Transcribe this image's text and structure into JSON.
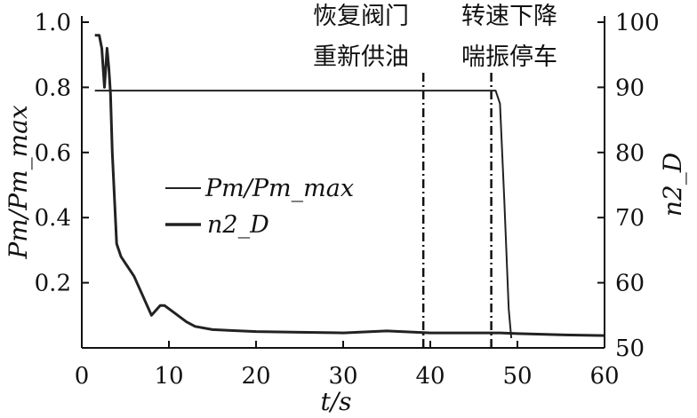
{
  "chart_data": {
    "type": "line",
    "xlabel": "t/s",
    "ylabel_left": "Pm/Pm_max",
    "ylabel_right": "n2_D",
    "xlim": [
      0,
      60
    ],
    "ylim_left": [
      0,
      1.0
    ],
    "ylim_right": [
      50,
      100
    ],
    "x_ticks": [
      "0",
      "10",
      "20",
      "30",
      "40",
      "50",
      "60"
    ],
    "y_left_ticks": [
      "0.2",
      "0.4",
      "0.6",
      "0.8",
      "1.0"
    ],
    "y_right_ticks": [
      "50",
      "60",
      "70",
      "80",
      "90",
      "100"
    ],
    "grid": false,
    "legend_position": "center-left",
    "series": [
      {
        "name": "Pm/Pm_max",
        "axis": "left",
        "x": [
          1.5,
          2.0,
          2.7,
          3.0,
          3.2,
          3.5,
          5,
          10,
          20,
          30,
          35,
          40,
          45,
          47.5,
          48.0,
          48.5,
          49.0,
          49.3
        ],
        "y": [
          0.79,
          0.79,
          0.79,
          0.79,
          0.79,
          0.79,
          0.79,
          0.79,
          0.79,
          0.79,
          0.79,
          0.79,
          0.79,
          0.79,
          0.75,
          0.45,
          0.12,
          0.03
        ]
      },
      {
        "name": "n2_D",
        "axis": "right",
        "x": [
          1.5,
          2.0,
          2.3,
          2.6,
          2.9,
          3.1,
          3.3,
          3.5,
          4.0,
          4.5,
          5.0,
          6.0,
          7.0,
          8.0,
          9.0,
          9.5,
          10.5,
          12.0,
          13.0,
          15.0,
          20.0,
          25.0,
          30.0,
          35.0,
          40.0,
          45.0,
          48.0,
          50.0,
          55.0,
          60.0
        ],
        "y": [
          98,
          98,
          96,
          90,
          96,
          93,
          89,
          80,
          66,
          64,
          63,
          61,
          58,
          55,
          56.5,
          56.5,
          55.5,
          54,
          53.3,
          52.8,
          52.5,
          52.4,
          52.3,
          52.6,
          52.3,
          52.3,
          52.3,
          52.2,
          52.0,
          51.9
        ]
      }
    ],
    "vlines": [
      {
        "x": 39.2,
        "label": [
          "恢复阀门",
          "重新供油"
        ]
      },
      {
        "x": 47.0,
        "label": [
          "转速下降",
          "喘振停车"
        ]
      }
    ]
  }
}
